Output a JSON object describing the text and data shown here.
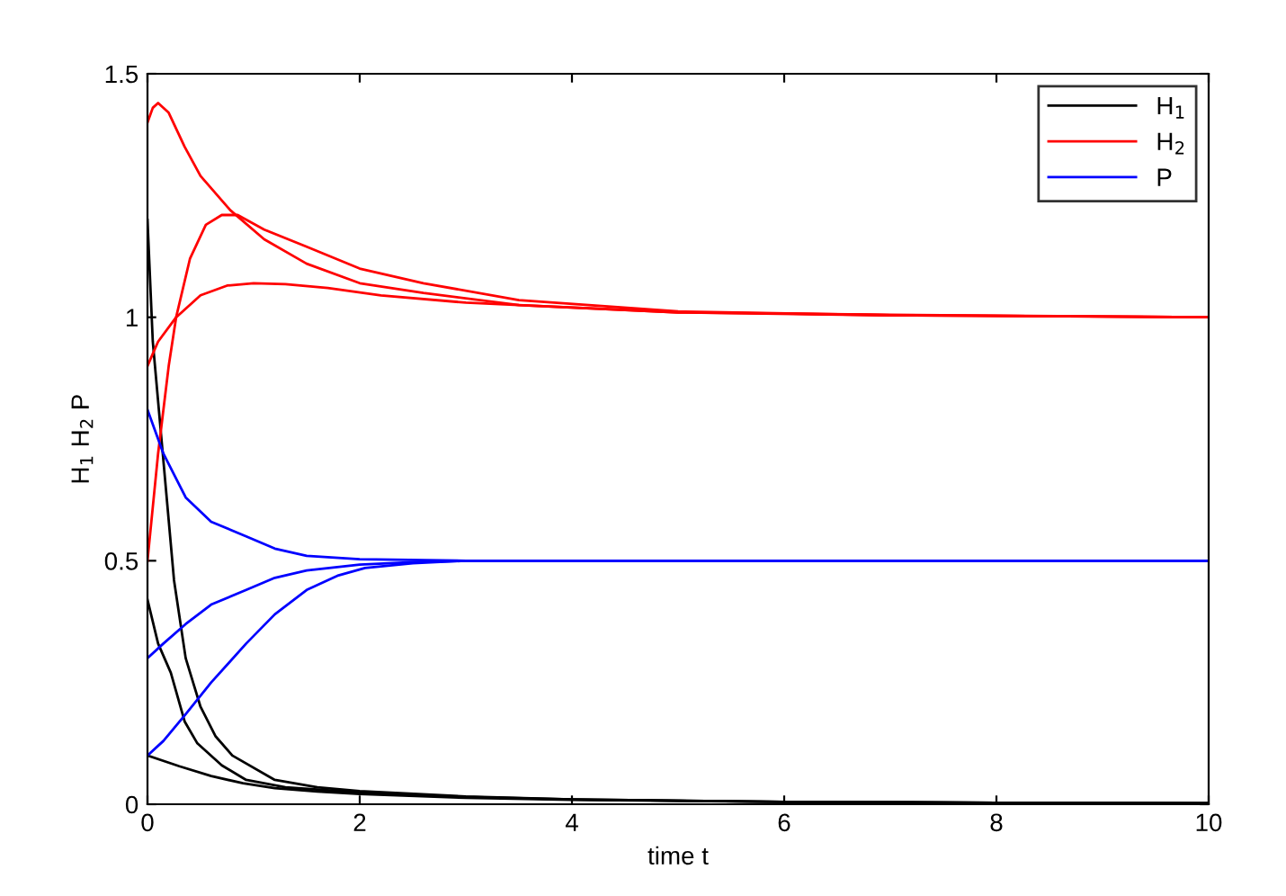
{
  "chart_data": {
    "type": "line",
    "xlabel": "time t",
    "ylabel": "H$_{1}$ H$_{2}$ P",
    "xlim": [
      0,
      10
    ],
    "ylim": [
      0,
      1.5
    ],
    "xticks": [
      0,
      2,
      4,
      6,
      8,
      10
    ],
    "yticks": [
      0,
      0.5,
      1,
      1.5
    ],
    "grid": false,
    "legend": "top right",
    "line_style": "solid",
    "marker": "none",
    "series": [
      {
        "name": "H$_{1}$",
        "color": "#000000",
        "x": [
          0,
          0.05,
          0.14,
          0.25,
          0.36,
          0.5,
          0.64,
          0.8,
          1.2,
          1.6,
          2,
          3,
          4,
          6,
          8,
          10
        ],
        "values": [
          1.2,
          0.95,
          0.73,
          0.46,
          0.3,
          0.2,
          0.14,
          0.1,
          0.05,
          0.035,
          0.027,
          0.016,
          0.01,
          0.005,
          0.003,
          0.002
        ]
      },
      {
        "color": "#000000",
        "x": [
          0,
          0.1,
          0.22,
          0.35,
          0.47,
          0.7,
          0.93,
          1.3,
          2,
          3,
          4,
          6,
          8,
          10
        ],
        "values": [
          0.42,
          0.33,
          0.27,
          0.17,
          0.125,
          0.08,
          0.05,
          0.035,
          0.024,
          0.015,
          0.01,
          0.005,
          0.003,
          0.002
        ]
      },
      {
        "color": "#000000",
        "x": [
          0,
          0.3,
          0.6,
          0.9,
          1.2,
          1.6,
          2,
          3,
          4,
          6,
          8,
          10
        ],
        "values": [
          0.1,
          0.078,
          0.058,
          0.043,
          0.033,
          0.026,
          0.021,
          0.013,
          0.009,
          0.005,
          0.003,
          0.002
        ]
      },
      {
        "name": "H$_{2}$",
        "color": "#ff0000",
        "x": [
          0,
          0.05,
          0.1,
          0.2,
          0.35,
          0.5,
          0.78,
          1.1,
          1.5,
          2,
          2.6,
          3.5,
          5,
          7,
          10
        ],
        "values": [
          1.4,
          1.43,
          1.44,
          1.42,
          1.35,
          1.29,
          1.22,
          1.16,
          1.11,
          1.07,
          1.05,
          1.025,
          1.01,
          1.005,
          1.0
        ]
      },
      {
        "color": "#ff0000",
        "x": [
          0,
          0.1,
          0.2,
          0.27,
          0.4,
          0.55,
          0.7,
          0.85,
          1.1,
          1.5,
          2,
          2.6,
          3.5,
          5,
          7,
          10
        ],
        "values": [
          0.5,
          0.72,
          0.9,
          1.0,
          1.12,
          1.19,
          1.21,
          1.21,
          1.18,
          1.145,
          1.1,
          1.07,
          1.035,
          1.012,
          1.004,
          1.0
        ]
      },
      {
        "color": "#ff0000",
        "x": [
          0,
          0.1,
          0.27,
          0.5,
          0.75,
          1.0,
          1.3,
          1.7,
          2.2,
          3,
          4,
          5,
          7,
          10
        ],
        "values": [
          0.9,
          0.95,
          1.0,
          1.045,
          1.065,
          1.07,
          1.068,
          1.06,
          1.045,
          1.03,
          1.02,
          1.01,
          1.004,
          1.0
        ]
      },
      {
        "name": "P",
        "color": "#0000ff",
        "x": [
          0,
          0.15,
          0.36,
          0.6,
          0.93,
          1.2,
          1.5,
          2,
          3,
          5,
          10
        ],
        "values": [
          0.81,
          0.72,
          0.63,
          0.58,
          0.55,
          0.525,
          0.51,
          0.503,
          0.5,
          0.5,
          0.5
        ]
      },
      {
        "color": "#0000ff",
        "x": [
          0,
          0.15,
          0.36,
          0.6,
          0.93,
          1.2,
          1.5,
          2,
          2.5,
          3,
          5,
          10
        ],
        "values": [
          0.3,
          0.33,
          0.37,
          0.41,
          0.44,
          0.465,
          0.48,
          0.492,
          0.497,
          0.5,
          0.5,
          0.5
        ]
      },
      {
        "color": "#0000ff",
        "x": [
          0,
          0.15,
          0.36,
          0.6,
          0.93,
          1.2,
          1.5,
          1.8,
          2.05,
          2.5,
          3,
          4,
          5,
          10
        ],
        "values": [
          0.1,
          0.13,
          0.185,
          0.25,
          0.33,
          0.39,
          0.44,
          0.47,
          0.485,
          0.495,
          0.5,
          0.5,
          0.5,
          0.5
        ]
      }
    ]
  }
}
